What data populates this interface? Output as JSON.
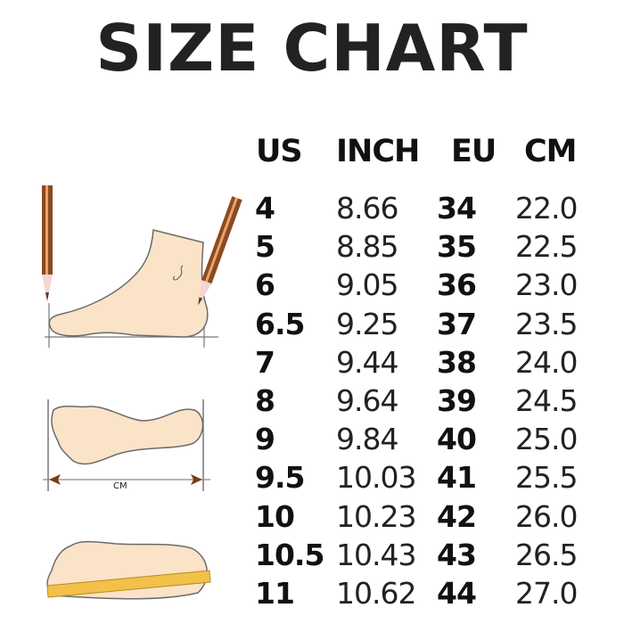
{
  "title": "SIZE CHART",
  "illustration_label": "CM",
  "table": {
    "headers": [
      "US",
      "INCH",
      "EU",
      "CM"
    ],
    "rows": [
      [
        "4",
        "8.66",
        "34",
        "22.0"
      ],
      [
        "5",
        "8.85",
        "35",
        "22.5"
      ],
      [
        "6",
        "9.05",
        "36",
        "23.0"
      ],
      [
        "6.5",
        "9.25",
        "37",
        "23.5"
      ],
      [
        "7",
        "9.44",
        "38",
        "24.0"
      ],
      [
        "8",
        "9.64",
        "39",
        "24.5"
      ],
      [
        "9",
        "9.84",
        "40",
        "25.0"
      ],
      [
        "9.5",
        "10.03",
        "41",
        "25.5"
      ],
      [
        "10",
        "10.23",
        "42",
        "26.0"
      ],
      [
        "10.5",
        "10.43",
        "43",
        "26.5"
      ],
      [
        "11",
        "10.62",
        "44",
        "27.0"
      ]
    ]
  },
  "colors": {
    "foot": "#fbe3c8",
    "outline": "#6b6b6b",
    "pencil": "#8a4a22",
    "ruler": "#f3c04a"
  }
}
